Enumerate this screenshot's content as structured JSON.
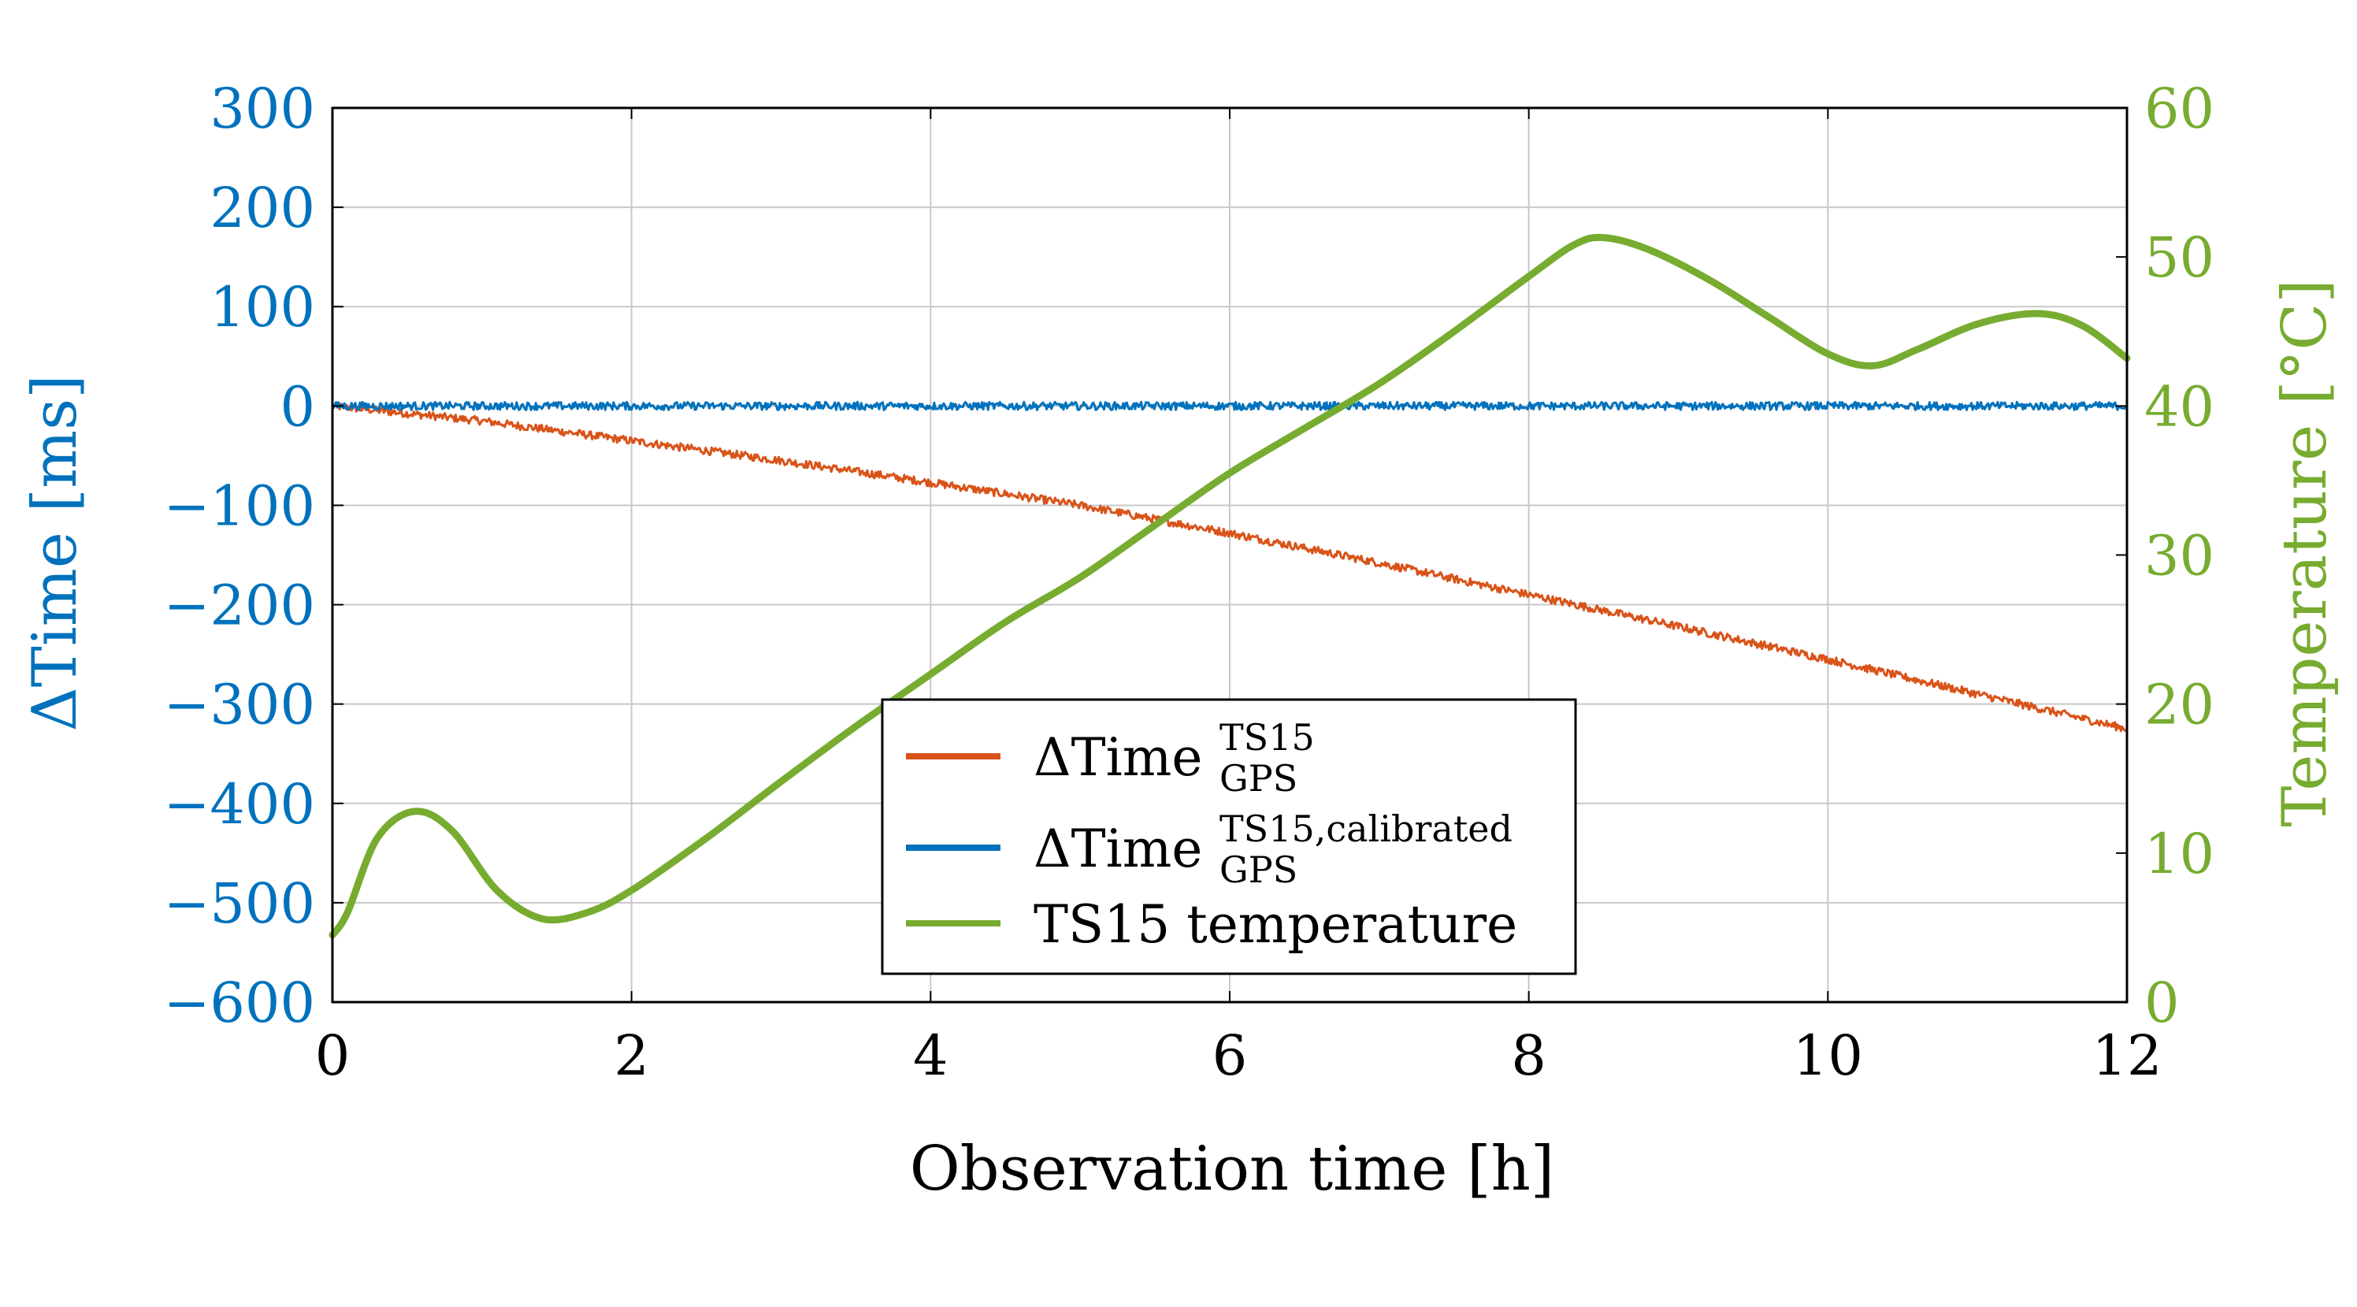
{
  "chart_data": {
    "type": "line",
    "xlabel": "Observation time [h]",
    "ylabel_left": "ΔTime [ms]",
    "ylabel_right": "Temperature [°C]",
    "xlim": [
      0,
      12
    ],
    "ylim_left": [
      -600,
      300
    ],
    "ylim_right": [
      0,
      60
    ],
    "x_ticks": [
      "0",
      "2",
      "4",
      "6",
      "8",
      "10",
      "12"
    ],
    "y_left_ticks": [
      "300",
      "200",
      "100",
      "0",
      "−100",
      "−200",
      "−300",
      "−400",
      "−500",
      "−600"
    ],
    "y_right_ticks": [
      "60",
      "50",
      "40",
      "30",
      "20",
      "10",
      "0"
    ],
    "grid": true,
    "legend_position": "center-bottom",
    "colors": {
      "left_axis": "#0072bd",
      "right_axis": "#77ac30",
      "red": "#d95319",
      "blue": "#0072bd",
      "green": "#77ac30"
    },
    "legend": [
      {
        "base": "ΔTime",
        "sup": "TS15",
        "sub": "GPS",
        "color": "#d95319"
      },
      {
        "base": "ΔTime",
        "sup": "TS15,calibrated",
        "sub": "GPS",
        "color": "#0072bd"
      },
      {
        "base": "TS15 temperature",
        "sup": "",
        "sub": "",
        "color": "#77ac30"
      }
    ],
    "series": [
      {
        "axis": "left",
        "color": "#d95319",
        "noise": 4,
        "x": [
          0,
          1,
          2,
          3,
          4,
          5,
          6,
          7,
          8,
          9,
          10,
          11,
          12
        ],
        "y": [
          0,
          -15,
          -35,
          -55,
          -77,
          -100,
          -128,
          -158,
          -190,
          -222,
          -255,
          -290,
          -325
        ]
      },
      {
        "axis": "left",
        "color": "#0072bd",
        "noise": 4,
        "x": [
          0,
          12
        ],
        "y": [
          0,
          0
        ]
      },
      {
        "axis": "right",
        "color": "#77ac30",
        "noise": 0,
        "x": [
          0,
          0.1,
          0.3,
          0.55,
          0.8,
          1.1,
          1.4,
          1.7,
          2.0,
          2.5,
          3.0,
          3.5,
          4.0,
          4.5,
          5.0,
          5.5,
          6.0,
          6.5,
          7.0,
          7.5,
          8.0,
          8.3,
          8.5,
          8.8,
          9.2,
          9.6,
          10.0,
          10.3,
          10.6,
          11.0,
          11.4,
          11.7,
          12.0
        ],
        "y": [
          4.5,
          6,
          11,
          12.8,
          11.5,
          7.5,
          5.6,
          6,
          7.5,
          11,
          14.8,
          18.5,
          22,
          25.5,
          28.5,
          32,
          35.5,
          38.5,
          41.5,
          45,
          48.7,
          50.8,
          51.3,
          50.5,
          48.5,
          46,
          43.5,
          42.7,
          43.8,
          45.5,
          46.2,
          45.4,
          43.2
        ]
      }
    ]
  }
}
